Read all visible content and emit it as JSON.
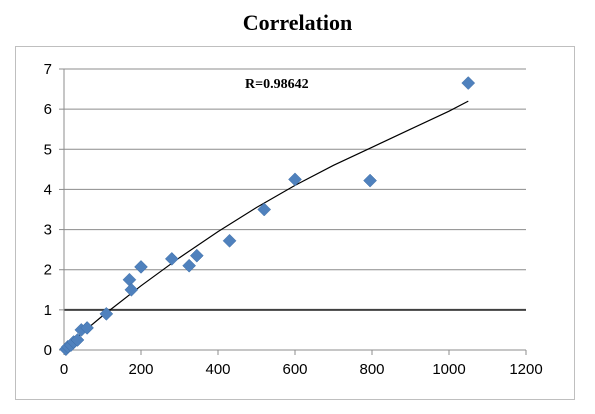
{
  "chart_data": {
    "type": "scatter",
    "title": "Correlation",
    "annotation": "R=0.98642",
    "xlabel": "",
    "ylabel": "",
    "xlim": [
      0,
      1200
    ],
    "ylim": [
      0,
      7
    ],
    "x_ticks": [
      0,
      200,
      400,
      600,
      800,
      1000,
      1200
    ],
    "y_ticks": [
      0,
      1,
      2,
      3,
      4,
      5,
      6,
      7
    ],
    "grid": true,
    "highlight_gridline": 1,
    "colors": {
      "marker": "#4f81bd",
      "trendline": "#000000",
      "grid": "#8c8c8c",
      "highlight_grid": "#404040"
    },
    "series": [
      {
        "points": [
          [
            5,
            0.02
          ],
          [
            10,
            0.08
          ],
          [
            18,
            0.12
          ],
          [
            25,
            0.2
          ],
          [
            35,
            0.25
          ],
          [
            45,
            0.5
          ],
          [
            60,
            0.55
          ],
          [
            110,
            0.9
          ],
          [
            170,
            1.75
          ],
          [
            175,
            1.5
          ],
          [
            200,
            2.07
          ],
          [
            280,
            2.27
          ],
          [
            325,
            2.1
          ],
          [
            345,
            2.35
          ],
          [
            430,
            2.72
          ],
          [
            520,
            3.5
          ],
          [
            600,
            4.25
          ],
          [
            795,
            4.22
          ],
          [
            1050,
            6.65
          ]
        ]
      }
    ],
    "trendline": {
      "type": "power",
      "points": [
        [
          10,
          0.1
        ],
        [
          50,
          0.45
        ],
        [
          100,
          0.85
        ],
        [
          200,
          1.6
        ],
        [
          300,
          2.3
        ],
        [
          400,
          2.95
        ],
        [
          500,
          3.55
        ],
        [
          600,
          4.1
        ],
        [
          700,
          4.6
        ],
        [
          800,
          5.05
        ],
        [
          900,
          5.5
        ],
        [
          1000,
          5.95
        ],
        [
          1050,
          6.2
        ]
      ]
    }
  }
}
